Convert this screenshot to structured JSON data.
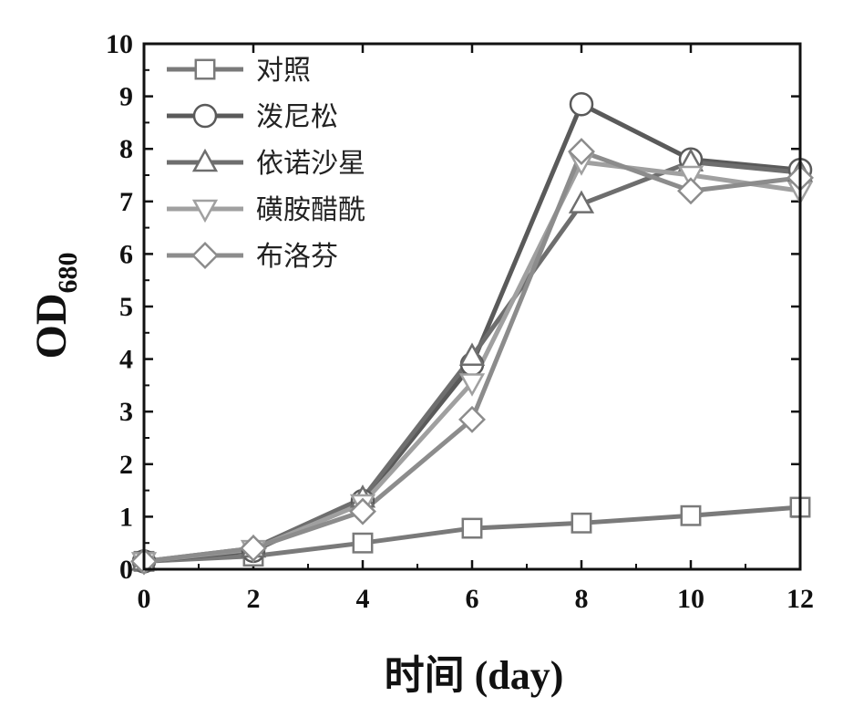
{
  "chart_data": {
    "type": "line",
    "xlabel": "时间 (day)",
    "ylabel_main": "OD",
    "ylabel_sub": "680",
    "xlim": [
      0,
      12
    ],
    "ylim": [
      0,
      10
    ],
    "xticks": [
      "0",
      "2",
      "4",
      "6",
      "8",
      "10",
      "12"
    ],
    "yticks": [
      "0",
      "1",
      "2",
      "3",
      "4",
      "5",
      "6",
      "7",
      "8",
      "9",
      "10"
    ],
    "x": [
      0,
      2,
      4,
      6,
      8,
      10,
      12
    ],
    "legend_position": "top-left",
    "series": [
      {
        "name": "对照",
        "marker": "square",
        "color": "#7a7a7a",
        "values": [
          0.15,
          0.25,
          0.5,
          0.78,
          0.88,
          1.02,
          1.18
        ]
      },
      {
        "name": "泼尼松",
        "marker": "circle",
        "color": "#5a5a5a",
        "values": [
          0.15,
          0.35,
          1.3,
          3.9,
          8.85,
          7.8,
          7.6
        ]
      },
      {
        "name": "依诺沙星",
        "marker": "triangle",
        "color": "#6e6e6e",
        "values": [
          0.15,
          0.4,
          1.35,
          4.05,
          6.95,
          7.75,
          7.55
        ]
      },
      {
        "name": "磺胺醋酰",
        "marker": "triangle-down",
        "color": "#a0a0a0",
        "values": [
          0.15,
          0.38,
          1.25,
          3.55,
          7.75,
          7.5,
          7.2
        ]
      },
      {
        "name": "布洛芬",
        "marker": "diamond",
        "color": "#8c8c8c",
        "values": [
          0.15,
          0.4,
          1.1,
          2.85,
          7.95,
          7.2,
          7.45
        ]
      }
    ]
  }
}
